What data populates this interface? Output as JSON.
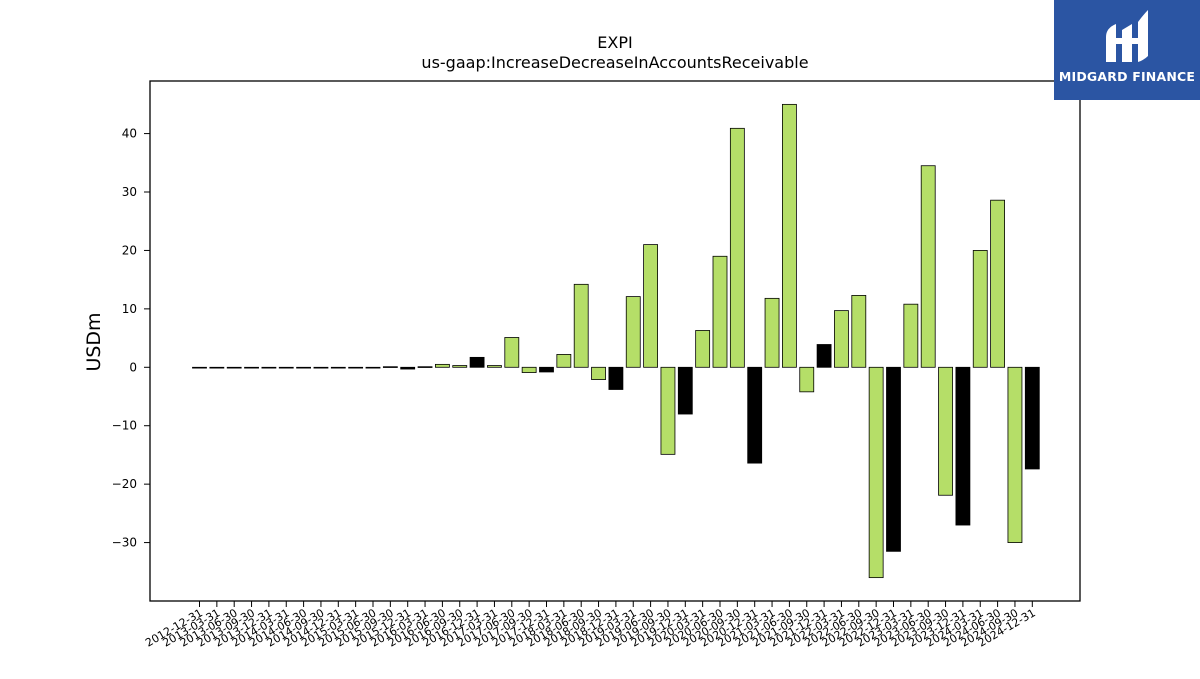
{
  "logo": {
    "text": "MIDGARD FINANCE"
  },
  "chart_data": {
    "type": "bar",
    "title": "EXPI",
    "subtitle": "us-gaap:IncreaseDecreaseInAccountsReceivable",
    "xlabel": "",
    "ylabel": "USDm",
    "ylim": [
      -40,
      49
    ],
    "yticks": [
      -30,
      -20,
      -10,
      0,
      10,
      20,
      30,
      40
    ],
    "grid": false,
    "legend": "none",
    "colors": {
      "default": "#b5de68",
      "q4": "#000000",
      "edge": "#000000"
    },
    "categories": [
      "2012-12-31",
      "2013-03-31",
      "2013-06-30",
      "2013-09-30",
      "2013-12-31",
      "2014-03-31",
      "2014-06-30",
      "2014-09-30",
      "2014-12-31",
      "2015-03-31",
      "2015-06-30",
      "2015-09-30",
      "2015-12-31",
      "2016-03-31",
      "2016-06-30",
      "2016-09-30",
      "2016-12-31",
      "2017-03-31",
      "2017-06-30",
      "2017-09-30",
      "2017-12-31",
      "2018-03-31",
      "2018-06-30",
      "2018-09-30",
      "2018-12-31",
      "2019-03-31",
      "2019-06-30",
      "2019-09-30",
      "2019-12-31",
      "2020-03-31",
      "2020-06-30",
      "2020-09-30",
      "2020-12-31",
      "2021-03-31",
      "2021-06-30",
      "2021-09-30",
      "2021-12-31",
      "2022-03-31",
      "2022-06-30",
      "2022-09-30",
      "2022-12-31",
      "2023-03-31",
      "2023-06-30",
      "2023-09-30",
      "2023-12-31",
      "2024-03-31",
      "2024-06-30",
      "2024-09-30",
      "2024-12-31"
    ],
    "values": [
      0,
      0,
      0,
      0,
      0,
      0,
      0,
      0,
      0,
      0,
      0,
      0.1,
      -0.3,
      0.1,
      0.5,
      0.3,
      1.7,
      0.3,
      5.1,
      -0.9,
      -0.8,
      2.2,
      14.2,
      -2.1,
      -3.8,
      12.1,
      21.0,
      -14.9,
      -8.0,
      6.3,
      19.0,
      40.9,
      -16.4,
      11.8,
      45.0,
      -4.2,
      3.9,
      9.7,
      12.3,
      -36.0,
      -31.5,
      10.8,
      34.5,
      -21.9,
      -27.0,
      20.0,
      28.6,
      -30.0,
      -17.4
    ]
  }
}
